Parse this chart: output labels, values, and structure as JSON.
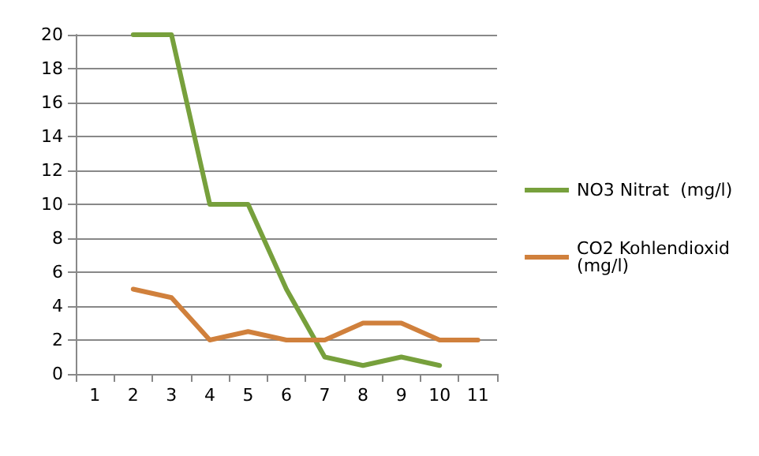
{
  "chart_data": {
    "type": "line",
    "categories": [
      "1",
      "2",
      "3",
      "4",
      "5",
      "6",
      "7",
      "8",
      "9",
      "10",
      "11"
    ],
    "series": [
      {
        "name": "NO3 Nitrat  (mg/l)",
        "color": "#77a03c",
        "values": [
          null,
          20,
          20,
          10,
          10,
          5,
          1,
          0.5,
          1,
          0.5,
          null
        ]
      },
      {
        "name": "CO2 Kohlendioxid (mg/l)",
        "color": "#d0803c",
        "values": [
          null,
          5,
          4.5,
          2,
          2.5,
          2,
          2,
          3,
          3,
          2,
          2
        ]
      }
    ],
    "ylim": [
      0,
      20
    ],
    "yticks": [
      0,
      2,
      4,
      6,
      8,
      10,
      12,
      14,
      16,
      18,
      20
    ],
    "grid": "y",
    "legend": "right",
    "marker": "none",
    "line_style": "solid"
  }
}
